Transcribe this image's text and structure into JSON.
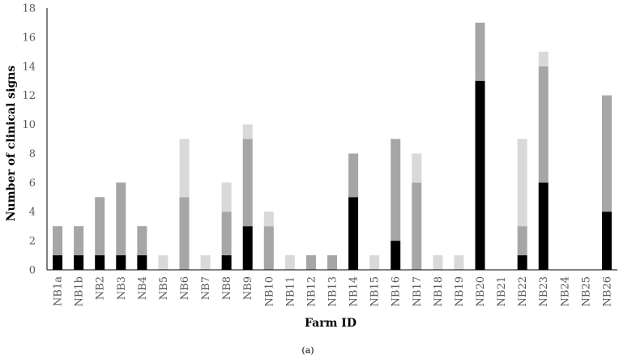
{
  "chart_data": {
    "type": "bar",
    "stacked": true,
    "xlabel": "Farm ID",
    "ylabel": "Number of clinical signs",
    "caption": "(a)",
    "ylim": [
      0,
      18
    ],
    "yticks": [
      0,
      2,
      4,
      6,
      8,
      10,
      12,
      14,
      16,
      18
    ],
    "grid": false,
    "legend": "none",
    "categories": [
      "NB1a",
      "NB1b",
      "NB2",
      "NB3",
      "NB4",
      "NB5",
      "NB6",
      "NB7",
      "NB8",
      "NB9",
      "NB10",
      "NB11",
      "NB12",
      "NB13",
      "NB14",
      "NB15",
      "NB16",
      "NB17",
      "NB18",
      "NB19",
      "NB20",
      "NB21",
      "NB22",
      "NB23",
      "NB24",
      "NB25",
      "NB26"
    ],
    "series": [
      {
        "color": "#000000",
        "values": [
          1,
          1,
          1,
          1,
          1,
          0,
          0,
          0,
          1,
          3,
          0,
          0,
          0,
          0,
          5,
          0,
          2,
          0,
          0,
          0,
          13,
          0,
          1,
          6,
          0,
          0,
          4
        ]
      },
      {
        "color": "#a6a6a6",
        "values": [
          2,
          2,
          4,
          5,
          2,
          0,
          5,
          0,
          3,
          6,
          3,
          0,
          1,
          1,
          3,
          0,
          7,
          6,
          0,
          0,
          4,
          0,
          2,
          8,
          0,
          0,
          8
        ]
      },
      {
        "color": "#d9d9d9",
        "values": [
          0,
          0,
          0,
          0,
          0,
          1,
          4,
          1,
          2,
          1,
          1,
          1,
          0,
          0,
          0,
          1,
          0,
          2,
          1,
          1,
          0,
          0,
          6,
          1,
          0,
          0,
          0
        ]
      }
    ]
  }
}
